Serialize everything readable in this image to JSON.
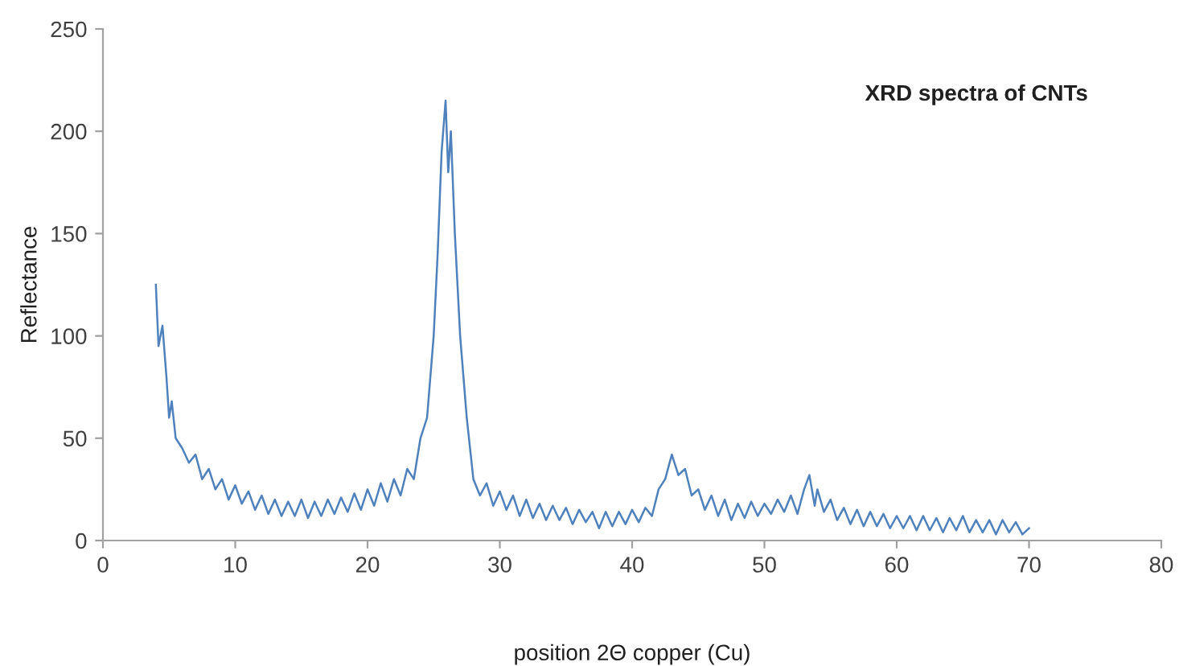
{
  "chart_data": {
    "type": "line",
    "title": "XRD spectra of CNTs",
    "xlabel": "position 2Θ copper (Cu)",
    "ylabel": "Reflectance",
    "xlim": [
      0,
      80
    ],
    "xticks": [
      0,
      10,
      20,
      30,
      40,
      50,
      60,
      70,
      80
    ],
    "ylim": [
      0,
      250
    ],
    "yticks": [
      0,
      50,
      100,
      150,
      200,
      250
    ],
    "grid": false,
    "legend": false,
    "marker": "none",
    "line_style": "solid",
    "series": [
      {
        "color": "#4f81bd",
        "x": [
          4.0,
          4.2,
          4.5,
          4.8,
          5.0,
          5.2,
          5.5,
          6,
          6.5,
          7,
          7.5,
          8,
          8.5,
          9,
          9.5,
          10,
          10.5,
          11,
          11.5,
          12,
          12.5,
          13,
          13.5,
          14,
          14.5,
          15,
          15.5,
          16,
          16.5,
          17,
          17.5,
          18,
          18.5,
          19,
          19.5,
          20,
          20.5,
          21,
          21.5,
          22,
          22.5,
          23,
          23.5,
          24,
          24.5,
          25,
          25.3,
          25.6,
          25.9,
          26.1,
          26.3,
          26.6,
          27,
          27.5,
          28,
          28.5,
          29,
          29.5,
          30,
          30.5,
          31,
          31.5,
          32,
          32.5,
          33,
          33.5,
          34,
          34.5,
          35,
          35.5,
          36,
          36.5,
          37,
          37.5,
          38,
          38.5,
          39,
          39.5,
          40,
          40.5,
          41,
          41.5,
          42,
          42.5,
          43,
          43.5,
          44,
          44.5,
          45,
          45.5,
          46,
          46.5,
          47,
          47.5,
          48,
          48.5,
          49,
          49.5,
          50,
          50.5,
          51,
          51.5,
          52,
          52.5,
          53,
          53.4,
          53.8,
          54,
          54.5,
          55,
          55.5,
          56,
          56.5,
          57,
          57.5,
          58,
          58.5,
          59,
          59.5,
          60,
          60.5,
          61,
          61.5,
          62,
          62.5,
          63,
          63.5,
          64,
          64.5,
          65,
          65.5,
          66,
          66.5,
          67,
          67.5,
          68,
          68.5,
          69,
          69.5,
          70
        ],
        "values": [
          125,
          95,
          105,
          80,
          60,
          68,
          50,
          45,
          38,
          42,
          30,
          35,
          25,
          30,
          20,
          27,
          18,
          24,
          15,
          22,
          13,
          20,
          12,
          19,
          12,
          20,
          11,
          19,
          12,
          20,
          13,
          21,
          14,
          23,
          15,
          25,
          17,
          28,
          19,
          30,
          22,
          35,
          30,
          50,
          60,
          100,
          140,
          190,
          215,
          180,
          200,
          150,
          100,
          60,
          30,
          22,
          28,
          17,
          24,
          15,
          22,
          12,
          20,
          11,
          18,
          10,
          17,
          10,
          16,
          8,
          15,
          9,
          14,
          6,
          14,
          7,
          14,
          8,
          15,
          9,
          16,
          12,
          25,
          30,
          42,
          32,
          35,
          22,
          25,
          15,
          22,
          12,
          20,
          10,
          18,
          11,
          19,
          12,
          18,
          13,
          20,
          14,
          22,
          13,
          25,
          32,
          17,
          25,
          14,
          20,
          10,
          16,
          8,
          15,
          7,
          14,
          7,
          13,
          6,
          12,
          6,
          12,
          5,
          12,
          5,
          11,
          4,
          11,
          5,
          12,
          4,
          10,
          4,
          10,
          3,
          10,
          4,
          9,
          3,
          6
        ]
      }
    ]
  }
}
